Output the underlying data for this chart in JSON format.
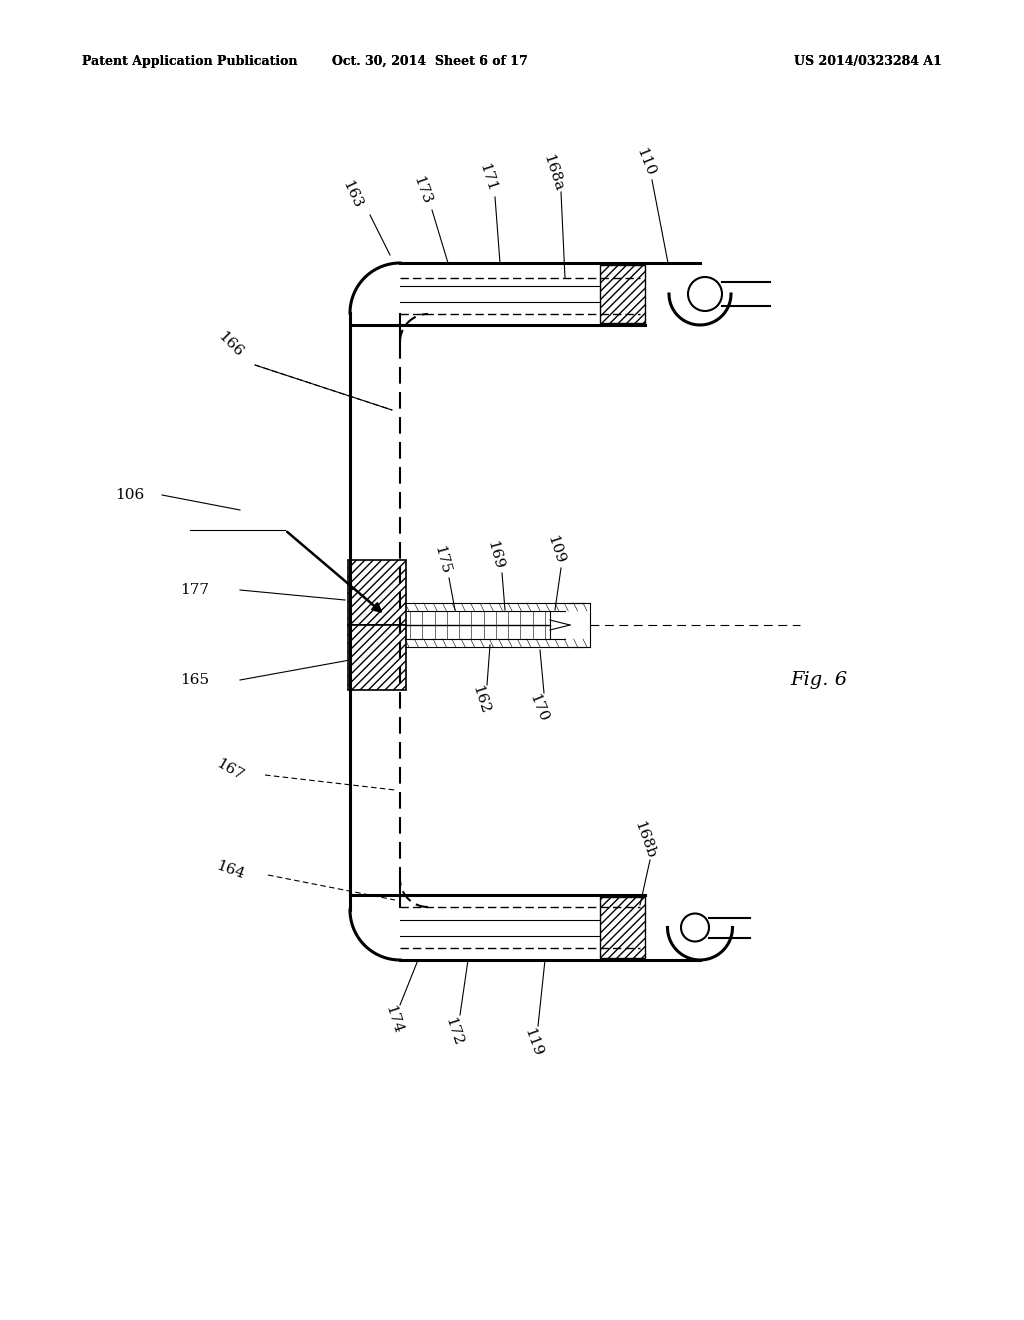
{
  "title_left": "Patent Application Publication",
  "title_center": "Oct. 30, 2014  Sheet 6 of 17",
  "title_right": "US 2014/0323284 A1",
  "fig_label": "Fig. 6",
  "bg_color": "#ffffff",
  "line_color": "#000000"
}
